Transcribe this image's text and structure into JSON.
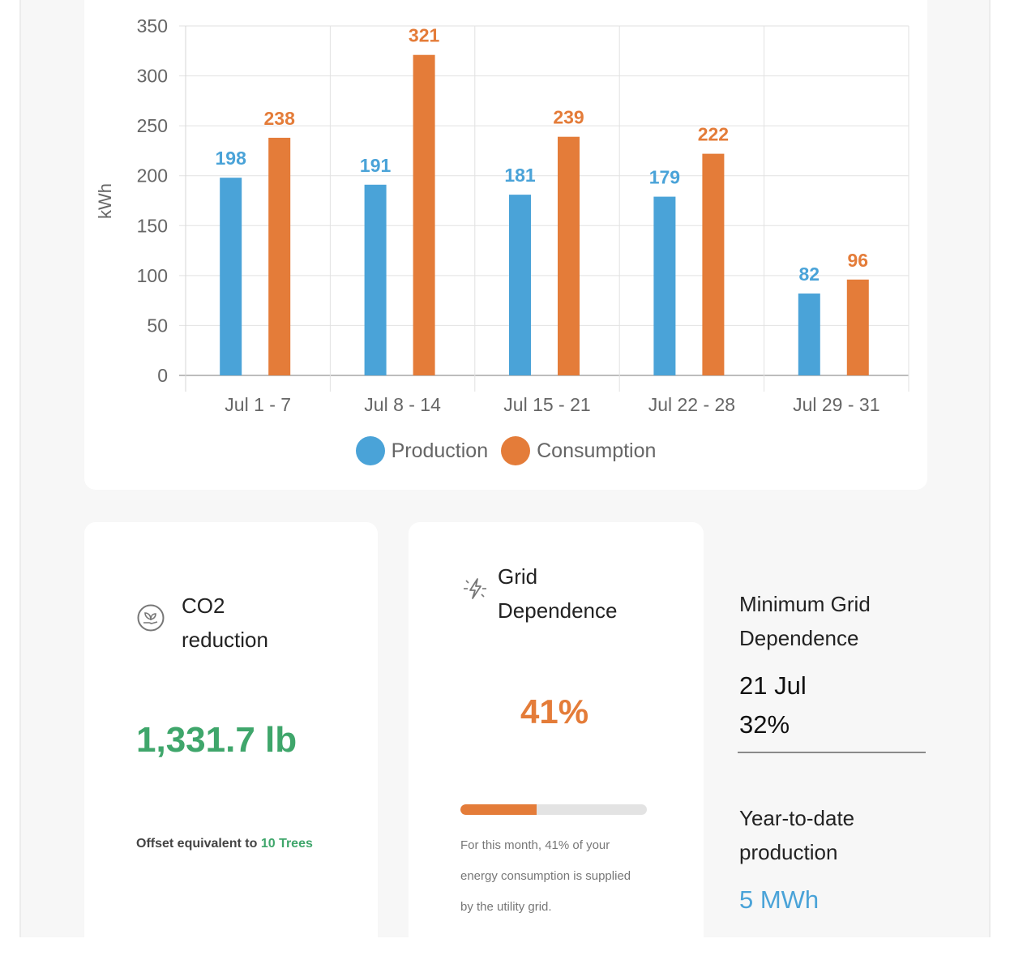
{
  "colors": {
    "production": "#4aa3d8",
    "consumption": "#e47c39",
    "co2_green": "#3fa66b",
    "grid_orange": "#e47c39",
    "ytd_blue": "#4aa3d8"
  },
  "chart_data": {
    "type": "bar",
    "ylabel": "kWh",
    "xlabel": "",
    "ylim": [
      0,
      350
    ],
    "yticks": [
      "0",
      "50",
      "100",
      "150",
      "200",
      "250",
      "300",
      "350"
    ],
    "categories": [
      "Jul 1 - 7",
      "Jul 8 - 14",
      "Jul 15 - 21",
      "Jul 22 - 28",
      "Jul 29 - 31"
    ],
    "series": [
      {
        "name": "Production",
        "values": [
          198,
          191,
          181,
          179,
          82
        ]
      },
      {
        "name": "Consumption",
        "values": [
          238,
          321,
          239,
          222,
          96
        ]
      }
    ],
    "legend": "bottom-center",
    "grid": true
  },
  "legend": {
    "production_label": "Production",
    "consumption_label": "Consumption"
  },
  "co2": {
    "icon": "leaf-hand-icon",
    "title_line1": "CO2",
    "title_line2": "reduction",
    "value": "1,331.7 lb",
    "offset_prefix": "Offset equivalent to",
    "offset_count": "10",
    "offset_unit": "Trees"
  },
  "grid": {
    "icon": "lightning-icon",
    "title_line1": "Grid",
    "title_line2": "Dependence",
    "value": "41%",
    "progress": 0.41,
    "desc_line1": "For this month, 41% of your",
    "desc_line2": "energy consumption is supplied",
    "desc_line3": "by the utility grid."
  },
  "min_grid": {
    "label_line1": "Minimum Grid",
    "label_line2": "Dependence",
    "date": "21 Jul",
    "percent": "32%"
  },
  "ytd": {
    "label_line1": "Year-to-date",
    "label_line2": "production",
    "value": "5 MWh"
  }
}
